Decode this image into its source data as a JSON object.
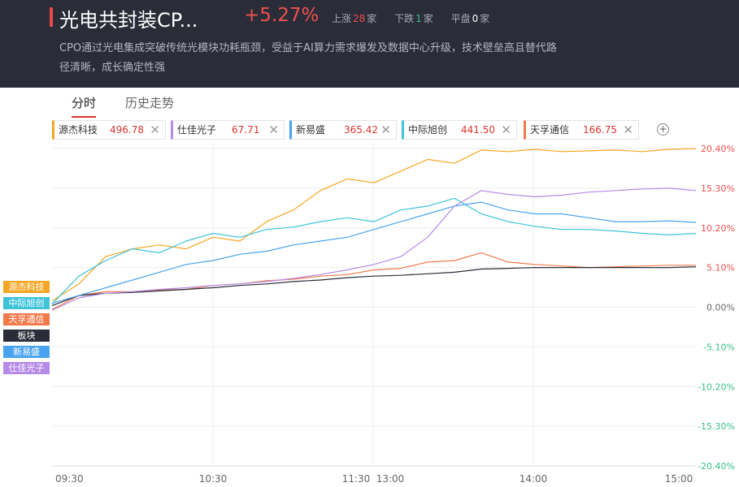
{
  "header": {
    "title": "光电共封装CP...",
    "change": "+5.27%",
    "up_label": "上涨",
    "up_count": "28",
    "up_unit": "家",
    "down_label": "下跌",
    "down_count": "1",
    "down_unit": "家",
    "flat_label": "平盘",
    "flat_count": "0",
    "flat_unit": "家",
    "description": "CPO通过光电集成突破传统光模块功耗瓶颈，受益于AI算力需求爆发及数据中心升级，技术壁垒高且替代路径清晰，成长确定性强"
  },
  "tabs": [
    {
      "label": "分时"
    },
    {
      "label": "历史走势"
    }
  ],
  "chips": [
    {
      "name": "源杰科技",
      "value": "496.78",
      "color": "#f5a623"
    },
    {
      "name": "仕佳光子",
      "value": "67.71",
      "color": "#b68ae8"
    },
    {
      "name": "新易盛",
      "value": "365.42",
      "color": "#4aa3f0"
    },
    {
      "name": "中际旭创",
      "value": "441.50",
      "color": "#3ec3d8"
    },
    {
      "name": "天孚通信",
      "value": "166.75",
      "color": "#f07a4a"
    }
  ],
  "legend": [
    {
      "name": "源杰科技",
      "color": "#f5a623"
    },
    {
      "name": "中际旭创",
      "color": "#3ec3d8"
    },
    {
      "name": "天孚通信",
      "color": "#f07a4a"
    },
    {
      "name": "板块",
      "color": "#2a2c38"
    },
    {
      "name": "新易盛",
      "color": "#4aa3f0"
    },
    {
      "name": "仕佳光子",
      "color": "#b68ae8"
    }
  ],
  "chart_data": {
    "type": "line",
    "x_ticks": [
      "09:30",
      "10:30",
      "11:30",
      "13:00",
      "14:00",
      "15:00"
    ],
    "y_ticks": [
      "20.40%",
      "15.30%",
      "10.20%",
      "5.10%",
      "0.00%",
      "-5.10%",
      "-10.20%",
      "-15.30%",
      "-20.40%"
    ],
    "ylim": [
      -20.4,
      20.4
    ],
    "grid": true,
    "legend_position": "left",
    "colors": {
      "up": "#f0504e",
      "zero": "#666666",
      "down": "#3ac089"
    },
    "series": [
      {
        "name": "源杰科技",
        "color": "#f5a623",
        "values": [
          0.8,
          3,
          6.5,
          7.5,
          8,
          7.5,
          9,
          8.5,
          11,
          12.5,
          15,
          16.5,
          16,
          17.5,
          19,
          18.5,
          20.2,
          20,
          20.3,
          20,
          20.1,
          20.2,
          20,
          20.3,
          20.4
        ]
      },
      {
        "name": "中际旭创",
        "color": "#3ec3d8",
        "values": [
          0.4,
          4,
          6,
          7.5,
          7,
          8.5,
          9.5,
          9,
          10,
          10.3,
          11,
          11.5,
          11,
          12.5,
          13,
          14,
          12,
          11,
          10.4,
          10,
          10,
          9.8,
          9.5,
          9.3,
          9.5
        ]
      },
      {
        "name": "天孚通信",
        "color": "#f07a4a",
        "values": [
          -0.3,
          1.5,
          2,
          2,
          2.2,
          2.3,
          2.8,
          3,
          3.4,
          3.6,
          4,
          4.2,
          4.8,
          5,
          5.8,
          6,
          7,
          5.8,
          5.5,
          5.3,
          5.1,
          5.2,
          5.3,
          5.4,
          5.4
        ]
      },
      {
        "name": "板块",
        "color": "#2a2c38",
        "values": [
          0.2,
          1.5,
          1.8,
          1.9,
          2.1,
          2.3,
          2.5,
          2.8,
          3,
          3.3,
          3.5,
          3.8,
          4,
          4.1,
          4.3,
          4.5,
          4.9,
          5,
          5.1,
          5.1,
          5.1,
          5.1,
          5.1,
          5.1,
          5.2
        ]
      },
      {
        "name": "新易盛",
        "color": "#4aa3f0",
        "values": [
          0.5,
          1.5,
          2.5,
          3.5,
          4.5,
          5.5,
          6,
          6.8,
          7.2,
          8,
          8.5,
          9,
          10,
          11,
          12,
          13,
          13.5,
          12.5,
          12,
          12,
          11.5,
          11,
          11,
          11.1,
          10.9
        ]
      },
      {
        "name": "仕佳光子",
        "color": "#b68ae8",
        "values": [
          -0.4,
          1.2,
          1.8,
          2,
          2.3,
          2.5,
          2.8,
          3,
          3.3,
          3.7,
          4.2,
          4.8,
          5.5,
          6.5,
          9,
          13,
          15,
          14.5,
          14.2,
          14.4,
          14.8,
          15,
          15.2,
          15.3,
          15
        ]
      }
    ]
  }
}
